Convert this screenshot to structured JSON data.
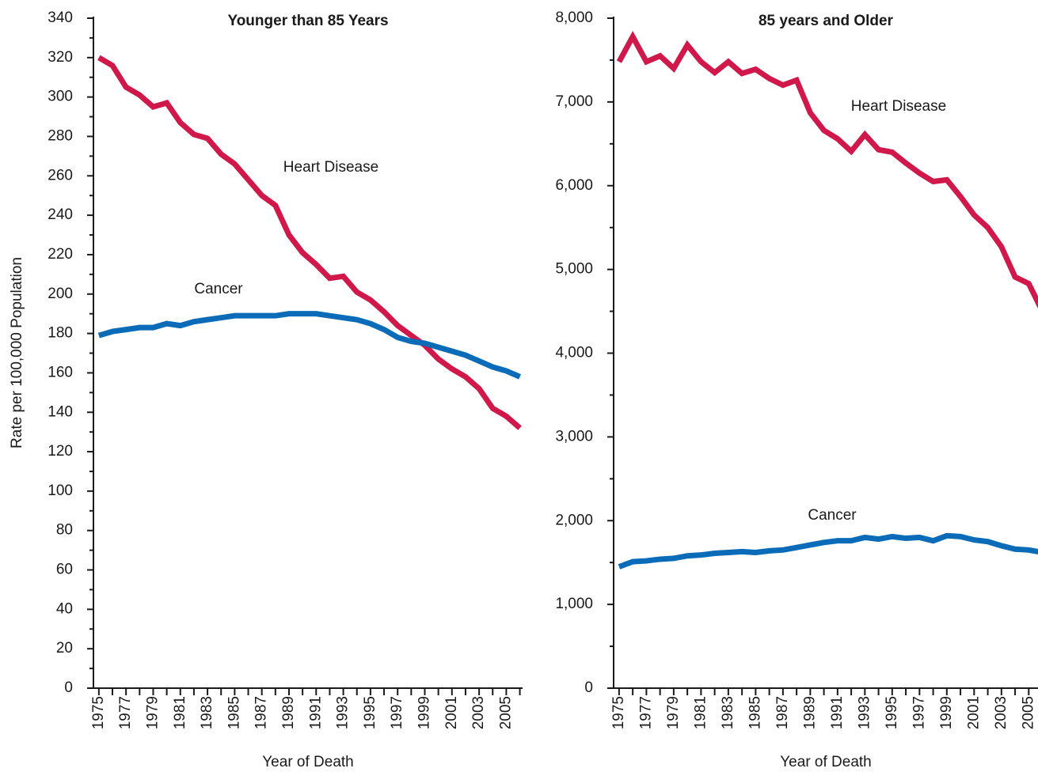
{
  "chart_data": [
    {
      "type": "line",
      "title": "Younger than 85 Years",
      "xlabel": "Year of Death",
      "ylabel": "Rate per 100,000 Population",
      "x": [
        1975,
        1976,
        1977,
        1978,
        1979,
        1980,
        1981,
        1982,
        1983,
        1984,
        1985,
        1986,
        1987,
        1988,
        1989,
        1990,
        1991,
        1992,
        1993,
        1994,
        1995,
        1996,
        1997,
        1998,
        1999,
        2000,
        2001,
        2002,
        2003,
        2004,
        2005,
        2006
      ],
      "series": [
        {
          "name": "Heart Disease",
          "color": "#d0184a",
          "values": [
            320,
            316,
            305,
            301,
            295,
            297,
            287,
            281,
            279,
            271,
            266,
            258,
            250,
            245,
            230,
            221,
            215,
            208,
            209,
            201,
            197,
            191,
            184,
            179,
            174,
            167,
            162,
            158,
            152,
            142,
            138,
            132
          ]
        },
        {
          "name": "Cancer",
          "color": "#0a6bb8",
          "values": [
            179,
            181,
            182,
            183,
            183,
            185,
            184,
            186,
            187,
            188,
            189,
            189,
            189,
            189,
            190,
            190,
            190,
            189,
            188,
            187,
            185,
            182,
            178,
            176,
            175,
            173,
            171,
            169,
            166,
            163,
            161,
            158
          ]
        }
      ],
      "xlim": [
        1974.6,
        2006.2
      ],
      "xticks": [
        1975,
        1977,
        1979,
        1981,
        1983,
        1985,
        1987,
        1989,
        1991,
        1993,
        1995,
        1997,
        1999,
        2001,
        2003,
        2005
      ],
      "ylim": [
        0,
        340
      ],
      "yticks": [
        0,
        20,
        40,
        60,
        80,
        100,
        120,
        140,
        160,
        180,
        200,
        220,
        240,
        260,
        280,
        300,
        320,
        340
      ]
    },
    {
      "type": "line",
      "title": "85 years and Older",
      "xlabel": "Year of Death",
      "x": [
        1975,
        1976,
        1977,
        1978,
        1979,
        1980,
        1981,
        1982,
        1983,
        1984,
        1985,
        1986,
        1987,
        1988,
        1989,
        1990,
        1991,
        1992,
        1993,
        1994,
        1995,
        1996,
        1997,
        1998,
        1999,
        2000,
        2001,
        2002,
        2003,
        2004,
        2005,
        2006
      ],
      "series": [
        {
          "name": "Heart Disease",
          "color": "#d0184a",
          "values": [
            7480,
            7780,
            7480,
            7550,
            7400,
            7680,
            7480,
            7350,
            7480,
            7340,
            7390,
            7280,
            7200,
            7260,
            6870,
            6660,
            6560,
            6410,
            6610,
            6430,
            6400,
            6270,
            6150,
            6050,
            6070,
            5870,
            5650,
            5500,
            5270,
            4910,
            4830,
            4500
          ]
        },
        {
          "name": "Cancer",
          "color": "#0a6bb8",
          "values": [
            1450,
            1510,
            1520,
            1540,
            1550,
            1580,
            1590,
            1610,
            1620,
            1630,
            1620,
            1640,
            1650,
            1680,
            1710,
            1740,
            1760,
            1760,
            1800,
            1780,
            1810,
            1790,
            1800,
            1760,
            1820,
            1810,
            1770,
            1750,
            1700,
            1660,
            1650,
            1620
          ]
        }
      ],
      "xlim": [
        1974.6,
        2006.2
      ],
      "xticks": [
        1975,
        1977,
        1979,
        1981,
        1983,
        1985,
        1987,
        1989,
        1991,
        1993,
        1995,
        1997,
        1999,
        2001,
        2003,
        2005
      ],
      "ylim": [
        0,
        8000
      ],
      "yticks": [
        0,
        {
          "value": 1000,
          "label": "1,000"
        },
        {
          "value": 2000,
          "label": "2,000"
        },
        {
          "value": 3000,
          "label": "3,000"
        },
        {
          "value": 4000,
          "label": "4,000"
        },
        {
          "value": 5000,
          "label": "5,000"
        },
        {
          "value": 6000,
          "label": "6,000"
        },
        {
          "value": 7000,
          "label": "7,000"
        },
        {
          "value": 8000,
          "label": "8,000"
        }
      ]
    }
  ]
}
